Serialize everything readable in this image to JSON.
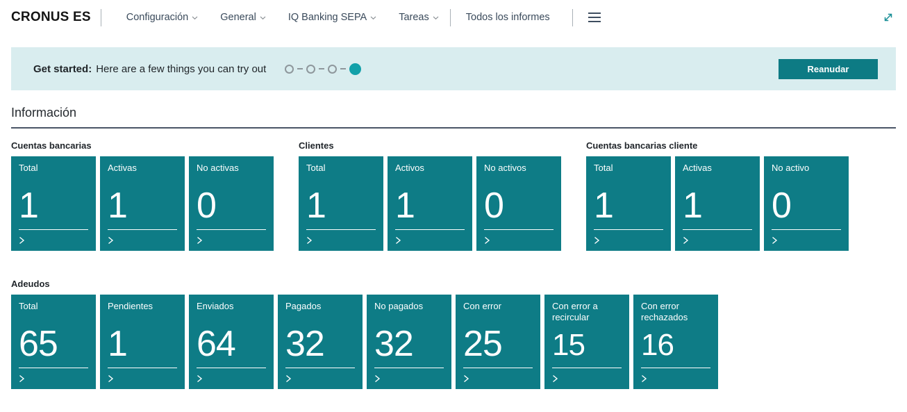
{
  "header": {
    "brand": "CRONUS ES",
    "menu_groups": [
      [
        {
          "label": "Configuración",
          "chevron": true
        },
        {
          "label": "General",
          "chevron": true
        },
        {
          "label": "IQ Banking SEPA",
          "chevron": true
        },
        {
          "label": "Tareas",
          "chevron": true
        }
      ],
      [
        {
          "label": "Todos los informes",
          "chevron": false
        }
      ]
    ]
  },
  "banner": {
    "title": "Get started:",
    "subtitle": "Here are a few things you can try out",
    "progress": {
      "total_steps": 4,
      "current_step": 4
    },
    "button_label": "Reanudar"
  },
  "section_title": "Información",
  "groups": [
    {
      "title": "Cuentas bancarias",
      "tiles": [
        {
          "label": "Total",
          "value": "1"
        },
        {
          "label": "Activas",
          "value": "1"
        },
        {
          "label": "No activas",
          "value": "0"
        }
      ]
    },
    {
      "title": "Clientes",
      "tiles": [
        {
          "label": "Total",
          "value": "1"
        },
        {
          "label": "Activos",
          "value": "1"
        },
        {
          "label": "No activos",
          "value": "0"
        }
      ]
    },
    {
      "title": "Cuentas bancarias cliente",
      "tiles": [
        {
          "label": "Total",
          "value": "1"
        },
        {
          "label": "Activas",
          "value": "1"
        },
        {
          "label": "No activo",
          "value": "0"
        }
      ]
    },
    {
      "title": "Adeudos",
      "tiles": [
        {
          "label": "Total",
          "value": "65"
        },
        {
          "label": "Pendientes",
          "value": "1"
        },
        {
          "label": "Enviados",
          "value": "64"
        },
        {
          "label": "Pagados",
          "value": "32"
        },
        {
          "label": "No pagados",
          "value": "32"
        },
        {
          "label": "Con error",
          "value": "25"
        },
        {
          "label": "Con error a recircular",
          "value": "15"
        },
        {
          "label": "Con error rechazados",
          "value": "16"
        }
      ]
    }
  ],
  "colors": {
    "tile": "#0e7c86",
    "banner_bg": "#d9edef",
    "button": "#0d7b84",
    "progress_filled": "#12a0a9",
    "nav_text": "#3a4a5b",
    "accent_icon": "#178e96"
  }
}
